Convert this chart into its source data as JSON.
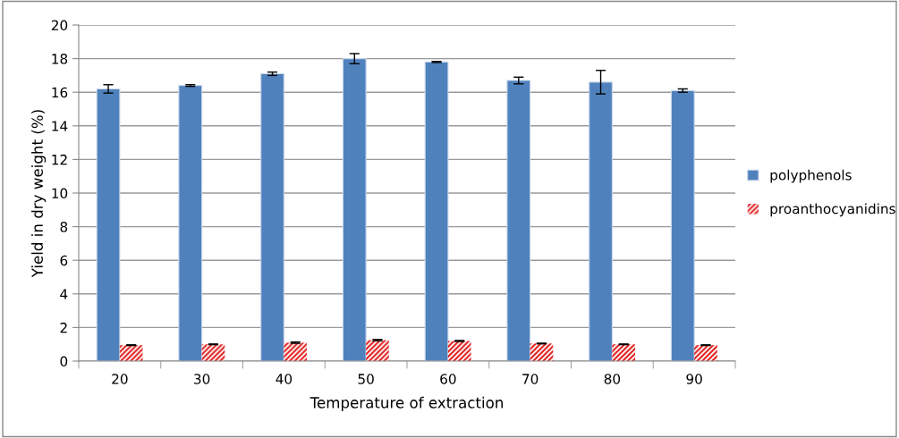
{
  "chart_data": {
    "type": "bar",
    "xlabel": "Temperature of extraction",
    "ylabel": "Yield in dry weight (%)",
    "categories": [
      "20",
      "30",
      "40",
      "50",
      "60",
      "70",
      "80",
      "90"
    ],
    "series": [
      {
        "name": "polyphenols",
        "color": "#4f81bd",
        "values": [
          16.2,
          16.4,
          17.1,
          18.0,
          17.8,
          16.7,
          16.6,
          16.1
        ],
        "errors": [
          0.25,
          0.05,
          0.1,
          0.3,
          0.03,
          0.2,
          0.7,
          0.1
        ]
      },
      {
        "name": "proanthocyanidins",
        "color": "#e02020",
        "values": [
          0.95,
          1.0,
          1.1,
          1.25,
          1.2,
          1.05,
          1.0,
          0.95
        ],
        "errors": [
          0.02,
          0.02,
          0.04,
          0.04,
          0.03,
          0.02,
          0.02,
          0.02
        ]
      }
    ],
    "ylim": [
      0,
      20
    ],
    "yticks": [
      0,
      2,
      4,
      6,
      8,
      10,
      12,
      14,
      16,
      18,
      20
    ],
    "grid": "y",
    "legend": "right"
  }
}
